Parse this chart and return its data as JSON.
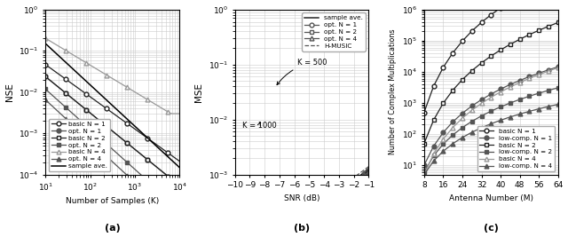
{
  "panel_a": {
    "xlabel": "Number of Samples (K)",
    "ylabel": "NSE",
    "label": "(a)",
    "xlim": [
      10,
      10000
    ],
    "ylim": [
      0.0001,
      1.0
    ]
  },
  "panel_b": {
    "xlabel": "SNR (dB)",
    "ylabel": "MSE",
    "label": "(b)",
    "xlim": [
      -10,
      -1
    ],
    "ylim": [
      0.001,
      1.0
    ],
    "xticks": [
      -10,
      -9,
      -8,
      -7,
      -6,
      -5,
      -4,
      -3,
      -2,
      -1
    ]
  },
  "panel_c": {
    "xlabel": "Antenna Number (M)",
    "ylabel": "Number of Complex Multiplications",
    "label": "(c)",
    "xlim": [
      8,
      64
    ],
    "ylim_low": 5,
    "ylim_high": 1000000,
    "xticks": [
      8,
      16,
      24,
      32,
      40,
      48,
      56,
      64
    ]
  },
  "colors": {
    "black": "#000000",
    "dark": "#222222",
    "mid": "#555555",
    "light": "#999999",
    "grid": "#cccccc"
  }
}
